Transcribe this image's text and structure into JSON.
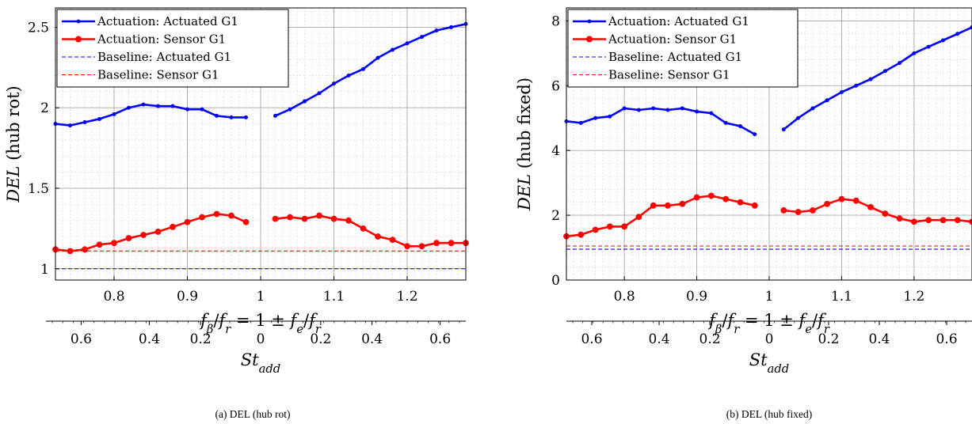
{
  "chart_data": [
    {
      "type": "line",
      "caption": "(a) DEL (hub rot)",
      "ylabel_main": "DEL",
      "ylabel_rest": "(hub rot)",
      "xlabel": "f_β/f_r = 1 ± f_e/f_r",
      "x2label": "St_add",
      "xlim": [
        0.72,
        1.28
      ],
      "ylim": [
        0.93,
        2.62
      ],
      "xticks": [
        "0.8",
        "0.9",
        "1",
        "1.1",
        "1.2"
      ],
      "yticks": [
        "1",
        "1.5",
        "2",
        "2.5"
      ],
      "x2ticks": [
        "0.6",
        "0.4",
        "0.2",
        "0",
        "0.2",
        "0.4",
        "0.6"
      ],
      "grid": true,
      "legend_position": "top-left",
      "series": [
        {
          "name": "Actuation: Actuated G1",
          "color": "#0000ff",
          "style": "solid-dot",
          "segments": [
            {
              "x": [
                0.72,
                0.74,
                0.76,
                0.78,
                0.8,
                0.82,
                0.84,
                0.86,
                0.88,
                0.9,
                0.92,
                0.94,
                0.96,
                0.98
              ],
              "y": [
                1.9,
                1.89,
                1.91,
                1.93,
                1.96,
                2.0,
                2.02,
                2.01,
                2.01,
                1.99,
                1.99,
                1.95,
                1.94,
                1.94
              ]
            },
            {
              "x": [
                1.02,
                1.04,
                1.06,
                1.08,
                1.1,
                1.12,
                1.14,
                1.16,
                1.18,
                1.2,
                1.22,
                1.24,
                1.26,
                1.28
              ],
              "y": [
                1.95,
                1.99,
                2.04,
                2.09,
                2.15,
                2.2,
                2.24,
                2.31,
                2.36,
                2.4,
                2.44,
                2.48,
                2.5,
                2.52
              ]
            }
          ]
        },
        {
          "name": "Actuation: Sensor G1",
          "color": "#ff0000",
          "style": "solid-circle",
          "segments": [
            {
              "x": [
                0.72,
                0.74,
                0.76,
                0.78,
                0.8,
                0.82,
                0.84,
                0.86,
                0.88,
                0.9,
                0.92,
                0.94,
                0.96,
                0.98
              ],
              "y": [
                1.12,
                1.11,
                1.12,
                1.15,
                1.16,
                1.19,
                1.21,
                1.23,
                1.26,
                1.29,
                1.32,
                1.34,
                1.33,
                1.29
              ]
            },
            {
              "x": [
                1.02,
                1.04,
                1.06,
                1.08,
                1.1,
                1.12,
                1.14,
                1.16,
                1.18,
                1.2,
                1.22,
                1.24,
                1.26,
                1.28
              ],
              "y": [
                1.31,
                1.32,
                1.31,
                1.33,
                1.31,
                1.3,
                1.25,
                1.2,
                1.18,
                1.14,
                1.14,
                1.16,
                1.16,
                1.16
              ]
            }
          ]
        },
        {
          "name": "Baseline: Actuated G1",
          "color": "#0000ff",
          "style": "dashed",
          "y": 1.0
        },
        {
          "name": "Baseline: Sensor G1",
          "color": "#ff0000",
          "style": "dashed",
          "y": 1.11
        }
      ]
    },
    {
      "type": "line",
      "caption": "(b) DEL (hub fixed)",
      "ylabel_main": "DEL",
      "ylabel_rest": "(hub fixed)",
      "xlabel": "f_β/f_r = 1 ± f_e/f_r",
      "x2label": "St_add",
      "xlim": [
        0.72,
        1.28
      ],
      "ylim": [
        0,
        8.4
      ],
      "xticks": [
        "0.8",
        "0.9",
        "1",
        "1.1",
        "1.2"
      ],
      "yticks": [
        "0",
        "2",
        "4",
        "6",
        "8"
      ],
      "x2ticks": [
        "0.6",
        "0.4",
        "0.2",
        "0",
        "0.2",
        "0.4",
        "0.6"
      ],
      "grid": true,
      "legend_position": "top-left",
      "series": [
        {
          "name": "Actuation: Actuated G1",
          "color": "#0000ff",
          "style": "solid-dot",
          "segments": [
            {
              "x": [
                0.72,
                0.74,
                0.76,
                0.78,
                0.8,
                0.82,
                0.84,
                0.86,
                0.88,
                0.9,
                0.92,
                0.94,
                0.96,
                0.98
              ],
              "y": [
                4.9,
                4.85,
                5.0,
                5.05,
                5.3,
                5.25,
                5.3,
                5.25,
                5.3,
                5.2,
                5.15,
                4.85,
                4.75,
                4.5
              ]
            },
            {
              "x": [
                1.02,
                1.04,
                1.06,
                1.08,
                1.1,
                1.12,
                1.14,
                1.16,
                1.18,
                1.2,
                1.22,
                1.24,
                1.26,
                1.28
              ],
              "y": [
                4.65,
                5.0,
                5.3,
                5.55,
                5.8,
                6.0,
                6.2,
                6.45,
                6.7,
                7.0,
                7.2,
                7.4,
                7.6,
                7.8
              ]
            }
          ]
        },
        {
          "name": "Actuation: Sensor G1",
          "color": "#ff0000",
          "style": "solid-circle",
          "segments": [
            {
              "x": [
                0.72,
                0.74,
                0.76,
                0.78,
                0.8,
                0.82,
                0.84,
                0.86,
                0.88,
                0.9,
                0.92,
                0.94,
                0.96,
                0.98
              ],
              "y": [
                1.35,
                1.4,
                1.55,
                1.65,
                1.65,
                1.95,
                2.3,
                2.3,
                2.35,
                2.55,
                2.6,
                2.5,
                2.4,
                2.3
              ]
            },
            {
              "x": [
                1.02,
                1.04,
                1.06,
                1.08,
                1.1,
                1.12,
                1.14,
                1.16,
                1.18,
                1.2,
                1.22,
                1.24,
                1.26,
                1.28
              ],
              "y": [
                2.15,
                2.1,
                2.15,
                2.35,
                2.5,
                2.45,
                2.25,
                2.05,
                1.9,
                1.8,
                1.85,
                1.85,
                1.85,
                1.8
              ]
            }
          ]
        },
        {
          "name": "Baseline: Actuated G1",
          "color": "#0000ff",
          "style": "dashed",
          "y": 0.95
        },
        {
          "name": "Baseline: Sensor G1",
          "color": "#ff0000",
          "style": "dashed",
          "y": 1.05
        }
      ]
    }
  ]
}
